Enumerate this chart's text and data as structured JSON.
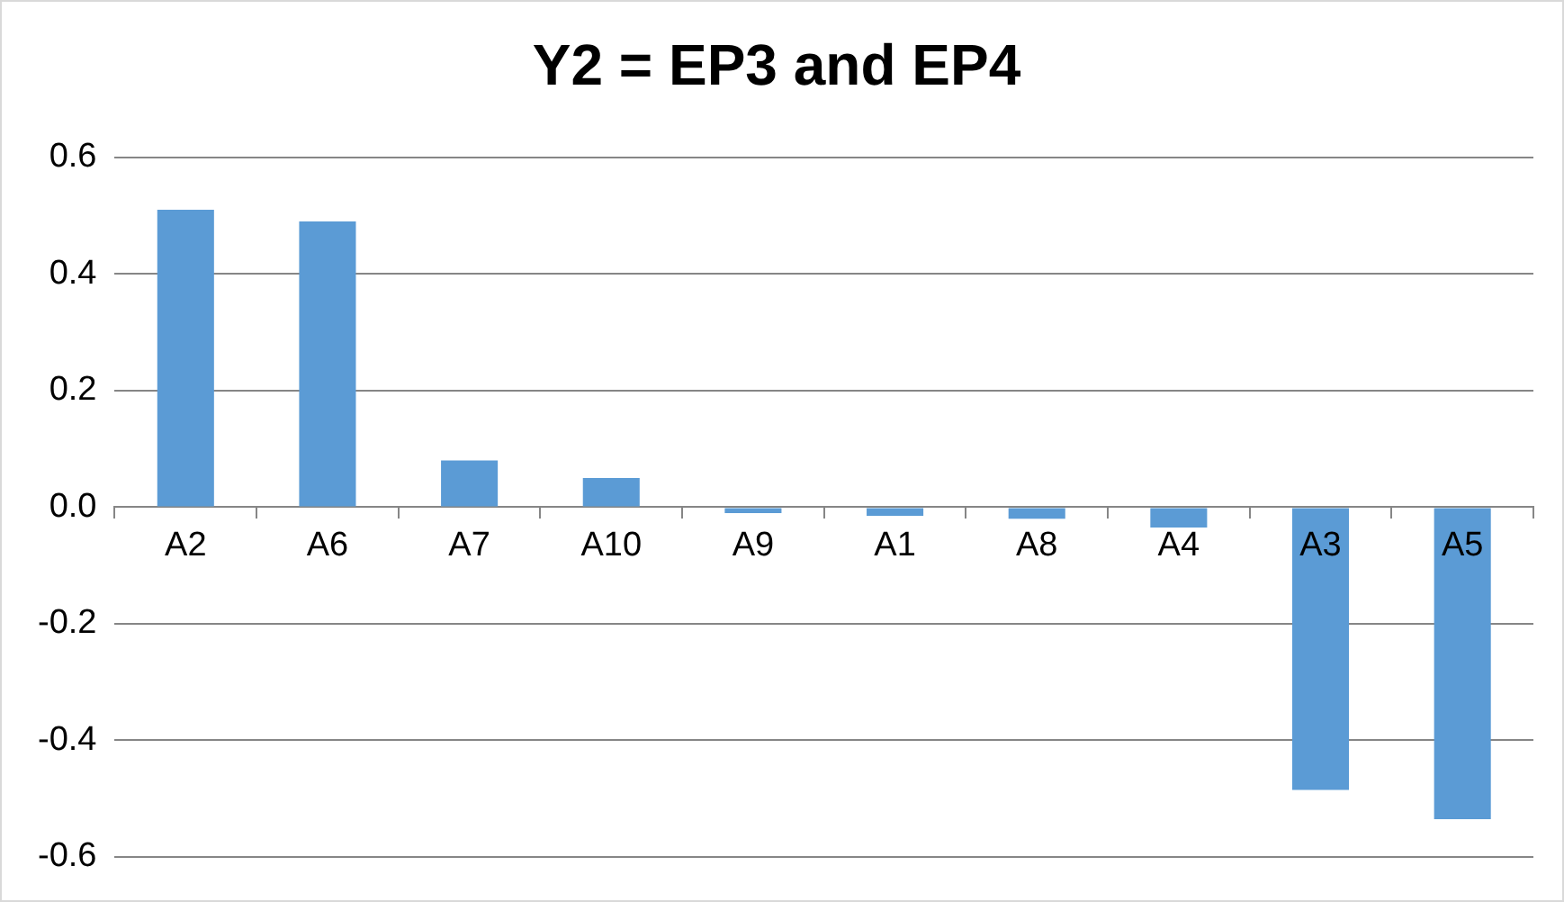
{
  "chart_data": {
    "type": "bar",
    "title": "Y2 = EP3 and EP4",
    "categories": [
      "A2",
      "A6",
      "A7",
      "A10",
      "A9",
      "A1",
      "A8",
      "A4",
      "A3",
      "A5"
    ],
    "values": [
      0.51,
      0.49,
      0.08,
      0.05,
      -0.01,
      -0.015,
      -0.02,
      -0.035,
      -0.485,
      -0.535
    ],
    "color": "#5b9bd5",
    "ylim": [
      -0.6,
      0.6
    ],
    "yticks": [
      {
        "value": -0.6,
        "label": "-0.6"
      },
      {
        "value": -0.4,
        "label": "-0.4"
      },
      {
        "value": -0.2,
        "label": "-0.2"
      },
      {
        "value": 0,
        "label": "0.0"
      },
      {
        "value": 0.2,
        "label": "0.2"
      },
      {
        "value": 0.4,
        "label": "0.4"
      },
      {
        "value": 0.6,
        "label": "0.6"
      }
    ],
    "grid": "y",
    "legend": false
  }
}
